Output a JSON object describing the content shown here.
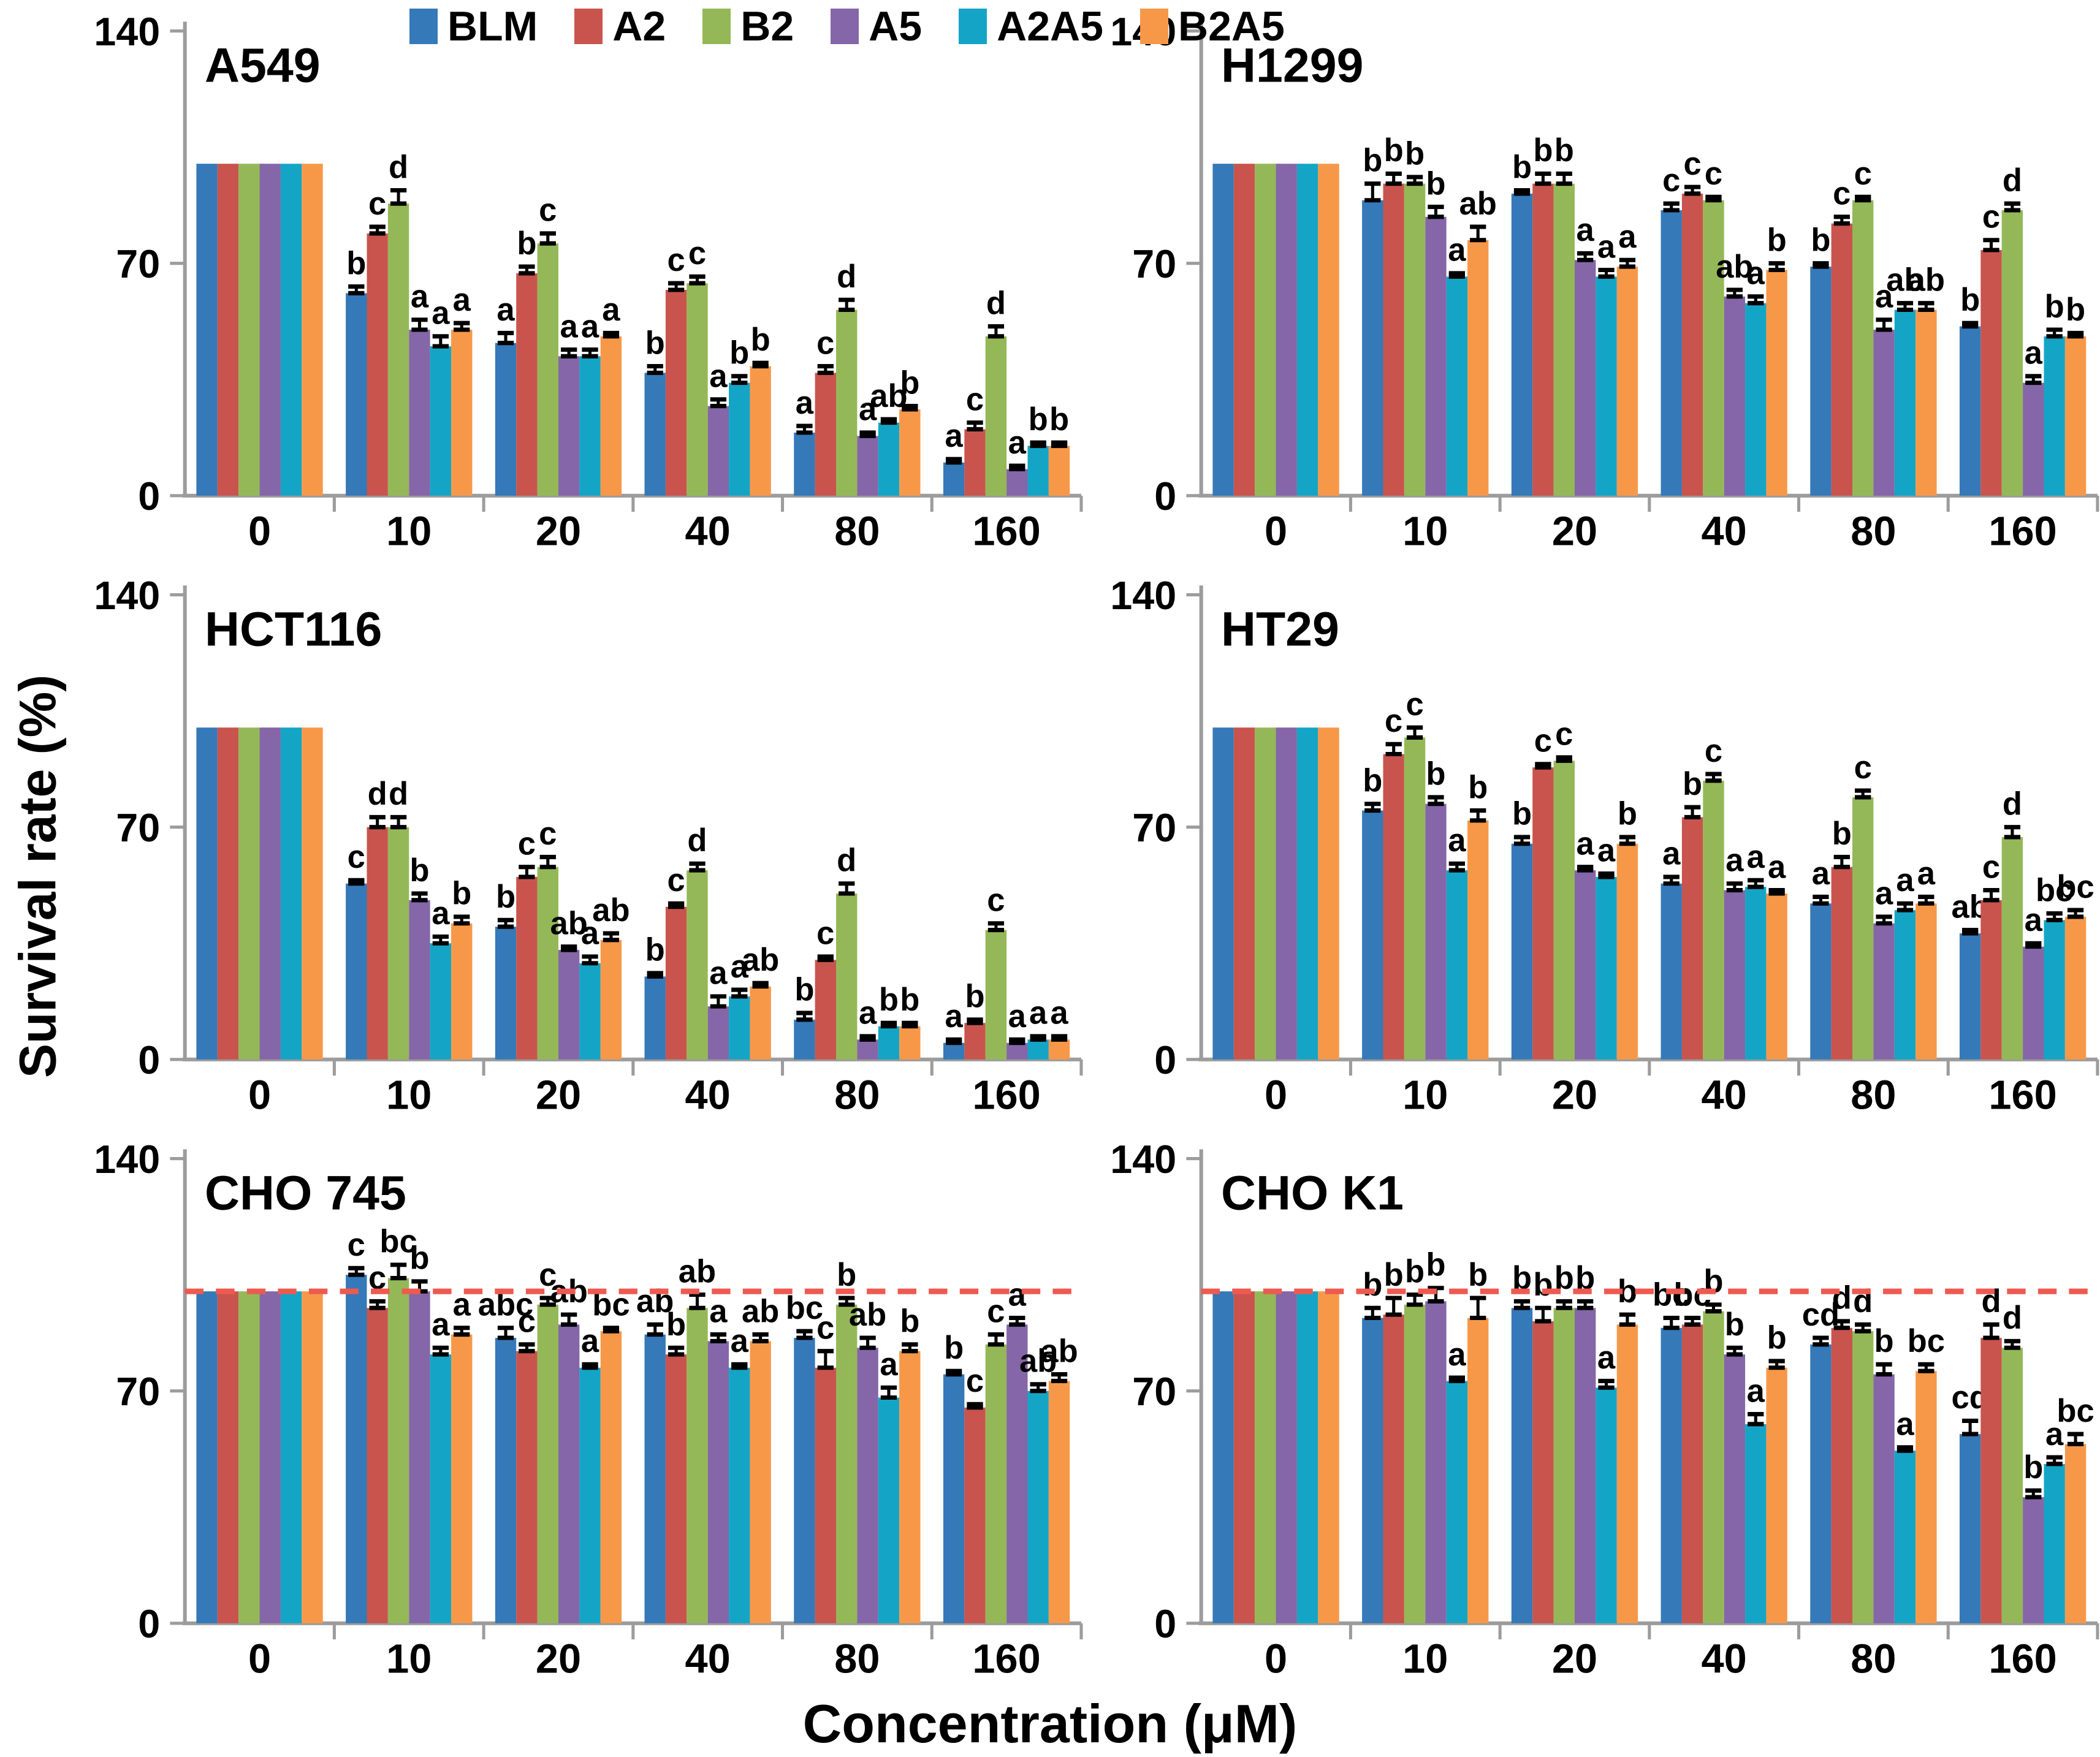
{
  "figure": {
    "y_axis_label": "Survival rate (%)",
    "x_axis_label": "Concentration (μM)",
    "y_ticks": [
      0,
      70,
      140
    ],
    "y_max": 140,
    "concentrations": [
      "0",
      "10",
      "20",
      "40",
      "80",
      "160"
    ],
    "series_names": [
      "BLM",
      "A2",
      "B2",
      "A5",
      "A2A5",
      "B2A5"
    ],
    "series_colors": [
      "#3579B8",
      "#C9544D",
      "#94B857",
      "#8566A8",
      "#14A5C6",
      "#F79849"
    ],
    "axis_color": "#9C9C9C",
    "dashed_line_color": "#EE5A50",
    "error_bar_color": "#000000"
  },
  "chart_data": [
    {
      "type": "bar",
      "title": "A549",
      "xlabel": "Concentration (μM)",
      "ylabel": "Survival rate (%)",
      "ylim": [
        0,
        140
      ],
      "reference_line": null,
      "categories": [
        "0",
        "10",
        "20",
        "40",
        "80",
        "160"
      ],
      "series": [
        {
          "name": "BLM",
          "color": "#3579B8",
          "values": [
            100,
            61,
            46,
            37,
            19,
            10
          ],
          "errors": [
            0,
            2,
            3,
            2,
            2,
            1
          ],
          "letters": [
            "",
            "b",
            "a",
            "b",
            "a",
            "a"
          ]
        },
        {
          "name": "A2",
          "color": "#C9544D",
          "values": [
            100,
            79,
            67,
            62,
            37,
            20
          ],
          "errors": [
            0,
            2,
            2,
            2,
            2,
            2
          ],
          "letters": [
            "",
            "c",
            "b",
            "c",
            "c",
            "c"
          ]
        },
        {
          "name": "B2",
          "color": "#94B857",
          "values": [
            100,
            88,
            76,
            64,
            56,
            48
          ],
          "errors": [
            0,
            4,
            3,
            2,
            3,
            3
          ],
          "letters": [
            "",
            "d",
            "c",
            "c",
            "d",
            "d"
          ]
        },
        {
          "name": "A5",
          "color": "#8566A8",
          "values": [
            100,
            50,
            42,
            27,
            18,
            8
          ],
          "errors": [
            0,
            3,
            2,
            2,
            1,
            1
          ],
          "letters": [
            "",
            "a",
            "a",
            "a",
            "a",
            "a"
          ]
        },
        {
          "name": "A2A5",
          "color": "#14A5C6",
          "values": [
            100,
            45,
            42,
            34,
            22,
            15
          ],
          "errors": [
            0,
            3,
            2,
            2,
            1,
            1
          ],
          "letters": [
            "",
            "a",
            "a",
            "b",
            "ab",
            "b"
          ]
        },
        {
          "name": "B2A5",
          "color": "#F79849",
          "values": [
            100,
            50,
            48,
            39,
            26,
            15
          ],
          "errors": [
            0,
            2,
            1,
            1,
            1,
            1
          ],
          "letters": [
            "",
            "a",
            "a",
            "b",
            "b",
            "b"
          ]
        }
      ]
    },
    {
      "type": "bar",
      "title": "H1299",
      "xlabel": "Concentration (μM)",
      "ylabel": "Survival rate (%)",
      "ylim": [
        0,
        140
      ],
      "reference_line": null,
      "categories": [
        "0",
        "10",
        "20",
        "40",
        "80",
        "160"
      ],
      "series": [
        {
          "name": "BLM",
          "color": "#3579B8",
          "values": [
            100,
            89,
            91,
            86,
            69,
            51
          ],
          "errors": [
            0,
            5,
            1,
            2,
            1,
            1
          ],
          "letters": [
            "",
            "b",
            "b",
            "c",
            "b",
            "b"
          ]
        },
        {
          "name": "A2",
          "color": "#C9544D",
          "values": [
            100,
            94,
            94,
            91,
            82,
            74
          ],
          "errors": [
            0,
            3,
            3,
            2,
            2,
            3
          ],
          "letters": [
            "",
            "b",
            "b",
            "c",
            "c",
            "c"
          ]
        },
        {
          "name": "B2",
          "color": "#94B857",
          "values": [
            100,
            94,
            94,
            89,
            89,
            86
          ],
          "errors": [
            0,
            2,
            3,
            1,
            1,
            2
          ],
          "letters": [
            "",
            "b",
            "b",
            "c",
            "c",
            "d"
          ]
        },
        {
          "name": "A5",
          "color": "#8566A8",
          "values": [
            100,
            84,
            71,
            60,
            50,
            34
          ],
          "errors": [
            0,
            3,
            2,
            2,
            3,
            2
          ],
          "letters": [
            "",
            "b",
            "a",
            "ab",
            "a",
            "a"
          ]
        },
        {
          "name": "A2A5",
          "color": "#14A5C6",
          "values": [
            100,
            66,
            66,
            58,
            56,
            48
          ],
          "errors": [
            0,
            1,
            2,
            2,
            2,
            2
          ],
          "letters": [
            "",
            "a",
            "a",
            "a",
            "ab",
            "b"
          ]
        },
        {
          "name": "B2A5",
          "color": "#F79849",
          "values": [
            100,
            77,
            69,
            68,
            56,
            48
          ],
          "errors": [
            0,
            4,
            2,
            2,
            2,
            1
          ],
          "letters": [
            "",
            "ab",
            "a",
            "b",
            "ab",
            "b"
          ]
        }
      ]
    },
    {
      "type": "bar",
      "title": "HCT116",
      "xlabel": "Concentration (μM)",
      "ylabel": "Survival rate (%)",
      "ylim": [
        0,
        140
      ],
      "reference_line": null,
      "categories": [
        "0",
        "10",
        "20",
        "40",
        "80",
        "160"
      ],
      "series": [
        {
          "name": "BLM",
          "color": "#3579B8",
          "values": [
            100,
            53,
            40,
            25,
            12,
            5
          ],
          "errors": [
            0,
            1,
            2,
            1,
            2,
            1
          ],
          "letters": [
            "",
            "c",
            "b",
            "b",
            "b",
            "a"
          ]
        },
        {
          "name": "A2",
          "color": "#C9544D",
          "values": [
            100,
            70,
            55,
            46,
            30,
            11
          ],
          "errors": [
            0,
            3,
            3,
            1,
            1,
            1
          ],
          "letters": [
            "",
            "d",
            "c",
            "c",
            "c",
            "b"
          ]
        },
        {
          "name": "B2",
          "color": "#94B857",
          "values": [
            100,
            70,
            58,
            57,
            50,
            39
          ],
          "errors": [
            0,
            3,
            3,
            2,
            3,
            2
          ],
          "letters": [
            "",
            "d",
            "c",
            "d",
            "d",
            "c"
          ]
        },
        {
          "name": "A5",
          "color": "#8566A8",
          "values": [
            100,
            48,
            33,
            16,
            6,
            5
          ],
          "errors": [
            0,
            2,
            1,
            3,
            1,
            1
          ],
          "letters": [
            "",
            "b",
            "ab",
            "a",
            "a",
            "a"
          ]
        },
        {
          "name": "A2A5",
          "color": "#14A5C6",
          "values": [
            100,
            35,
            29,
            19,
            10,
            6
          ],
          "errors": [
            0,
            2,
            2,
            2,
            1,
            1
          ],
          "letters": [
            "",
            "a",
            "a",
            "a",
            "b",
            "a"
          ]
        },
        {
          "name": "B2A5",
          "color": "#F79849",
          "values": [
            100,
            41,
            36,
            22,
            10,
            6
          ],
          "errors": [
            0,
            2,
            2,
            1,
            1,
            1
          ],
          "letters": [
            "",
            "b",
            "ab",
            "ab",
            "b",
            "a"
          ]
        }
      ]
    },
    {
      "type": "bar",
      "title": "HT29",
      "xlabel": "Concentration (μM)",
      "ylabel": "Survival rate (%)",
      "ylim": [
        0,
        140
      ],
      "reference_line": null,
      "categories": [
        "0",
        "10",
        "20",
        "40",
        "80",
        "160"
      ],
      "series": [
        {
          "name": "BLM",
          "color": "#3579B8",
          "values": [
            100,
            75,
            65,
            53,
            47,
            38
          ],
          "errors": [
            0,
            2,
            2,
            2,
            2,
            1
          ],
          "letters": [
            "",
            "b",
            "b",
            "a",
            "a",
            "ab"
          ]
        },
        {
          "name": "A2",
          "color": "#C9544D",
          "values": [
            100,
            92,
            88,
            73,
            58,
            48
          ],
          "errors": [
            0,
            3,
            1,
            3,
            3,
            3
          ],
          "letters": [
            "",
            "c",
            "c",
            "b",
            "b",
            "c"
          ]
        },
        {
          "name": "B2",
          "color": "#94B857",
          "values": [
            100,
            97,
            90,
            84,
            79,
            67
          ],
          "errors": [
            0,
            3,
            1,
            2,
            2,
            3
          ],
          "letters": [
            "",
            "c",
            "c",
            "c",
            "c",
            "d"
          ]
        },
        {
          "name": "A5",
          "color": "#8566A8",
          "values": [
            100,
            77,
            57,
            51,
            41,
            34
          ],
          "errors": [
            0,
            2,
            1,
            2,
            2,
            1
          ],
          "letters": [
            "",
            "b",
            "a",
            "a",
            "a",
            "a"
          ]
        },
        {
          "name": "A2A5",
          "color": "#14A5C6",
          "values": [
            100,
            57,
            55,
            52,
            45,
            42
          ],
          "errors": [
            0,
            2,
            1,
            2,
            2,
            2
          ],
          "letters": [
            "",
            "a",
            "a",
            "a",
            "a",
            "bc"
          ]
        },
        {
          "name": "B2A5",
          "color": "#F79849",
          "values": [
            100,
            72,
            65,
            50,
            47,
            43
          ],
          "errors": [
            0,
            3,
            2,
            1,
            2,
            2
          ],
          "letters": [
            "",
            "b",
            "b",
            "a",
            "a",
            "bc"
          ]
        }
      ]
    },
    {
      "type": "bar",
      "title": "CHO 745",
      "xlabel": "Concentration (μM)",
      "ylabel": "Survival rate (%)",
      "ylim": [
        0,
        140
      ],
      "reference_line": 100,
      "categories": [
        "0",
        "10",
        "20",
        "40",
        "80",
        "160"
      ],
      "series": [
        {
          "name": "BLM",
          "color": "#3579B8",
          "values": [
            100,
            105,
            86,
            87,
            86,
            75
          ],
          "errors": [
            0,
            2,
            3,
            3,
            2,
            1
          ],
          "letters": [
            "",
            "c",
            "abc",
            "ab",
            "bc",
            "b"
          ]
        },
        {
          "name": "A2",
          "color": "#C9544D",
          "values": [
            100,
            95,
            82,
            81,
            77,
            65
          ],
          "errors": [
            0,
            2,
            2,
            2,
            5,
            1
          ],
          "letters": [
            "",
            "c",
            "c",
            "b",
            "c",
            "c"
          ]
        },
        {
          "name": "B2",
          "color": "#94B857",
          "values": [
            100,
            104,
            96,
            95,
            96,
            84
          ],
          "errors": [
            0,
            4,
            2,
            4,
            2,
            3
          ],
          "letters": [
            "",
            "bc",
            "c",
            "ab",
            "b",
            "c"
          ]
        },
        {
          "name": "A5",
          "color": "#8566A8",
          "values": [
            100,
            100,
            90,
            85,
            83,
            90
          ],
          "errors": [
            0,
            3,
            3,
            2,
            3,
            2
          ],
          "letters": [
            "",
            "b",
            "ab",
            "a",
            "ab",
            "a"
          ]
        },
        {
          "name": "A2A5",
          "color": "#14A5C6",
          "values": [
            100,
            81,
            77,
            77,
            68,
            70
          ],
          "errors": [
            0,
            2,
            1,
            1,
            3,
            2
          ],
          "letters": [
            "",
            "a",
            "a",
            "a",
            "a",
            "ab"
          ]
        },
        {
          "name": "B2A5",
          "color": "#F79849",
          "values": [
            100,
            87,
            88,
            85,
            82,
            73
          ],
          "errors": [
            0,
            2,
            1,
            2,
            2,
            2
          ],
          "letters": [
            "",
            "a",
            "bc",
            "ab",
            "b",
            "ab"
          ]
        }
      ]
    },
    {
      "type": "bar",
      "title": "CHO K1",
      "xlabel": "Concentration (μM)",
      "ylabel": "Survival rate (%)",
      "ylim": [
        0,
        140
      ],
      "reference_line": 100,
      "categories": [
        "0",
        "10",
        "20",
        "40",
        "80",
        "160"
      ],
      "series": [
        {
          "name": "BLM",
          "color": "#3579B8",
          "values": [
            100,
            92,
            95,
            89,
            84,
            57
          ],
          "errors": [
            0,
            3,
            2,
            3,
            2,
            4
          ],
          "letters": [
            "",
            "b",
            "b",
            "bc",
            "cd",
            "cd"
          ]
        },
        {
          "name": "A2",
          "color": "#C9544D",
          "values": [
            100,
            93,
            91,
            90,
            89,
            86
          ],
          "errors": [
            0,
            5,
            4,
            2,
            2,
            4
          ],
          "letters": [
            "",
            "b",
            "b",
            "bc",
            "d",
            "d"
          ]
        },
        {
          "name": "B2",
          "color": "#94B857",
          "values": [
            100,
            96,
            95,
            94,
            88,
            83
          ],
          "errors": [
            0,
            3,
            2,
            2,
            2,
            2
          ],
          "letters": [
            "",
            "b",
            "b",
            "b",
            "d",
            "d"
          ]
        },
        {
          "name": "A5",
          "color": "#8566A8",
          "values": [
            100,
            97,
            95,
            81,
            75,
            38
          ],
          "errors": [
            0,
            4,
            2,
            2,
            3,
            2
          ],
          "letters": [
            "",
            "b",
            "b",
            "b",
            "b",
            "b"
          ]
        },
        {
          "name": "A2A5",
          "color": "#14A5C6",
          "values": [
            100,
            73,
            71,
            60,
            52,
            48
          ],
          "errors": [
            0,
            1,
            2,
            3,
            1,
            2
          ],
          "letters": [
            "",
            "a",
            "a",
            "a",
            "a",
            "a"
          ]
        },
        {
          "name": "B2A5",
          "color": "#F79849",
          "values": [
            100,
            92,
            90,
            77,
            76,
            54
          ],
          "errors": [
            0,
            6,
            3,
            2,
            2,
            3
          ],
          "letters": [
            "",
            "b",
            "b",
            "b",
            "bc",
            "bc"
          ]
        }
      ]
    }
  ]
}
